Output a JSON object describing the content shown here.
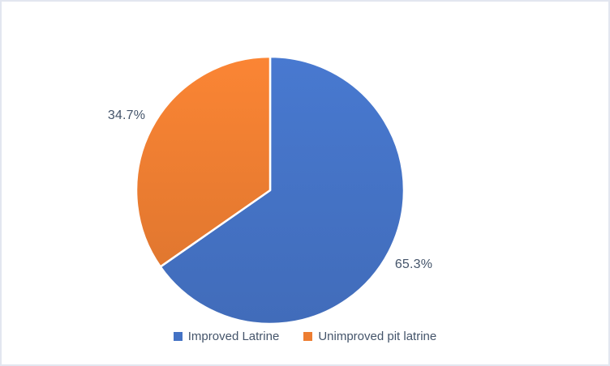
{
  "chart_data": {
    "type": "pie",
    "categories": [
      "Improved Latrine",
      "Unimproved pit latrine"
    ],
    "values": [
      65.3,
      34.7
    ],
    "labels": [
      "65.3%",
      "34.7%"
    ],
    "colors": [
      "#4472C4",
      "#ED7D31"
    ],
    "title": "",
    "start_angle_deg": 0,
    "direction": "clockwise",
    "slice_separator_color": "#FFFFFF",
    "legend_position": "bottom",
    "label_text_color": "#44546A"
  },
  "legend": {
    "items": [
      {
        "label": "Improved Latrine",
        "color": "#4472C4"
      },
      {
        "label": "Unimproved pit latrine",
        "color": "#ED7D31"
      }
    ]
  },
  "frame": {
    "background": "#FFFFFF",
    "border_color": "#E2E6F0"
  }
}
